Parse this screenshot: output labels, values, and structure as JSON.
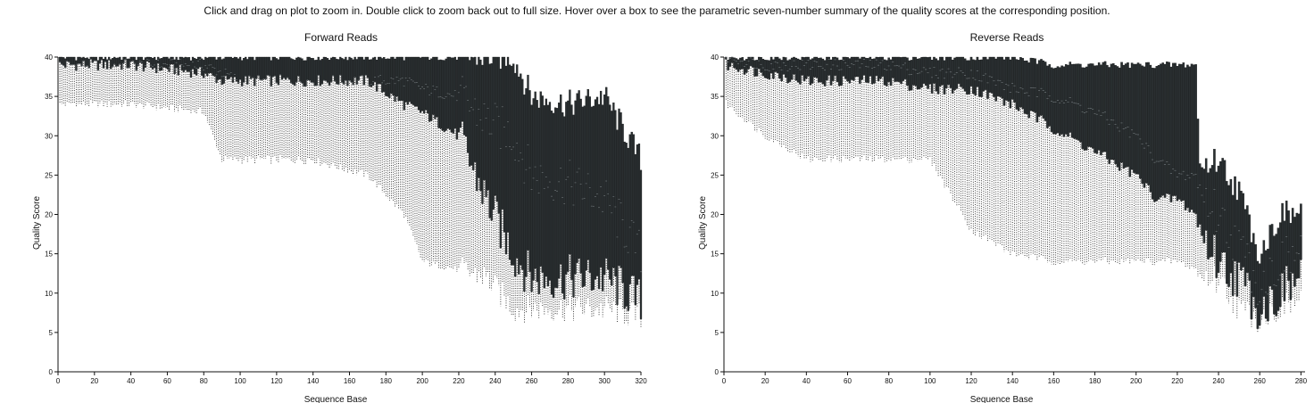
{
  "instructions": "Click and drag on plot to zoom in. Double click to zoom back out to full size. Hover over a box to see the parametric seven-number summary of the quality scores at the corresponding position.",
  "colors": {
    "box_fill": "#2a2f31",
    "whisker": "#111111",
    "box_stroke": "#0d0f10"
  },
  "chart_data": [
    {
      "type": "box",
      "title": "Forward Reads",
      "xlabel": "Sequence Base",
      "ylabel": "Quality Score",
      "xlim": [
        0,
        320
      ],
      "ylim": [
        0,
        40
      ],
      "x_ticks": [
        0,
        20,
        40,
        60,
        80,
        100,
        120,
        140,
        160,
        180,
        200,
        220,
        240,
        260,
        280,
        300,
        320
      ],
      "y_ticks": [
        0,
        5,
        10,
        15,
        20,
        25,
        30,
        35,
        40
      ],
      "profile": {
        "x": [
          1,
          10,
          40,
          80,
          90,
          100,
          140,
          170,
          190,
          200,
          220,
          235,
          250,
          260,
          280,
          300,
          320
        ],
        "q75": [
          40,
          40,
          40,
          40,
          40,
          40,
          40,
          40,
          40,
          40,
          40,
          40,
          40,
          35,
          34,
          35,
          27
        ],
        "median": [
          39,
          39,
          39,
          39,
          38,
          37,
          37,
          37,
          37,
          36,
          35,
          32,
          30,
          25,
          24,
          22,
          15
        ],
        "q25": [
          39,
          39,
          39,
          38,
          37,
          37,
          37,
          37,
          34,
          33,
          30,
          22,
          15,
          12,
          12,
          12,
          9
        ],
        "q09": [
          37,
          36,
          36,
          35,
          30,
          27,
          27,
          25,
          23,
          17,
          15,
          13,
          10,
          10,
          9,
          9,
          8
        ],
        "q02": [
          34,
          34,
          34,
          33,
          27,
          27,
          27,
          25,
          20,
          14,
          13,
          12,
          8,
          8,
          8,
          8,
          7
        ]
      }
    },
    {
      "type": "box",
      "title": "Reverse Reads",
      "xlabel": "Sequence Base",
      "ylabel": "Quality Score",
      "xlim": [
        0,
        282
      ],
      "ylim": [
        0,
        40
      ],
      "x_ticks": [
        0,
        20,
        40,
        60,
        80,
        100,
        120,
        140,
        160,
        180,
        200,
        220,
        240,
        260,
        280
      ],
      "y_ticks": [
        0,
        5,
        10,
        15,
        20,
        25,
        30,
        35,
        40
      ],
      "profile": {
        "x": [
          1,
          20,
          40,
          60,
          80,
          100,
          120,
          140,
          160,
          180,
          200,
          210,
          220,
          229,
          231,
          240,
          250,
          260,
          270,
          280
        ],
        "q75": [
          40,
          40,
          40,
          40,
          40,
          40,
          40,
          40,
          39,
          39,
          39,
          39,
          39,
          39,
          26,
          27,
          23,
          15,
          20,
          20
        ],
        "median": [
          40,
          39,
          39,
          39,
          39,
          38,
          38,
          36,
          35,
          33,
          30,
          27,
          25,
          25,
          23,
          20,
          16,
          11,
          14,
          15
        ],
        "q25": [
          39,
          38,
          37,
          37,
          37,
          36,
          36,
          34,
          31,
          28,
          25,
          22,
          22,
          20,
          18,
          14,
          12,
          8,
          10,
          12
        ],
        "q09": [
          36,
          35,
          35,
          34,
          33,
          30,
          28,
          22,
          18,
          16,
          15,
          15,
          15,
          15,
          13,
          12,
          10,
          7,
          9,
          10
        ],
        "q02": [
          34,
          30,
          27,
          27,
          27,
          27,
          18,
          15,
          14,
          14,
          14,
          14,
          14,
          13,
          12,
          12,
          8,
          7,
          8,
          9
        ]
      }
    }
  ]
}
